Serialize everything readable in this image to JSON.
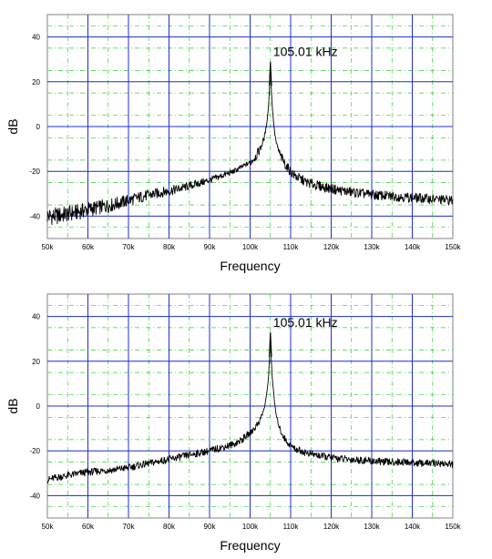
{
  "chart_data": [
    {
      "type": "line",
      "xlabel": "Frequency",
      "ylabel": "dB",
      "xlim": [
        50,
        150
      ],
      "ylim": [
        -50,
        50
      ],
      "x_ticks": [
        "50k",
        "60k",
        "70k",
        "80k",
        "90k",
        "100k",
        "110k",
        "120k",
        "130k",
        "140k",
        "150k"
      ],
      "y_ticks": [
        "40",
        "20",
        "0",
        "-20",
        "-40"
      ],
      "annotation": "105.01 kHz",
      "peak_x": 105.01,
      "grid": true,
      "series": [
        {
          "x": [
            50,
            52,
            55,
            58,
            60,
            63,
            66,
            70,
            74,
            78,
            82,
            86,
            90,
            93,
            96,
            98,
            100,
            101.5,
            102.5,
            103.5,
            104,
            104.5,
            104.8,
            105.01,
            105.2,
            105.5,
            106,
            106.5,
            107.5,
            109,
            111,
            114,
            118,
            122,
            126,
            130,
            134,
            138,
            142,
            146,
            150
          ],
          "y": [
            -40,
            -40,
            -39,
            -38,
            -37,
            -36,
            -35,
            -33,
            -31,
            -29.5,
            -28,
            -26,
            -24,
            -22,
            -20,
            -18,
            -16,
            -13,
            -10,
            -5,
            0,
            8,
            18,
            29,
            18,
            8,
            -2,
            -8,
            -13,
            -18,
            -22,
            -25,
            -27,
            -28.5,
            -29.5,
            -30.5,
            -31,
            -31.5,
            -32,
            -32.5,
            -33
          ]
        }
      ]
    },
    {
      "type": "line",
      "xlabel": "Frequency",
      "ylabel": "dB",
      "xlim": [
        50,
        150
      ],
      "ylim": [
        -50,
        50
      ],
      "x_ticks": [
        "50k",
        "60k",
        "70k",
        "80k",
        "90k",
        "100k",
        "110k",
        "120k",
        "130k",
        "140k",
        "150k"
      ],
      "y_ticks": [
        "40",
        "20",
        "0",
        "-20",
        "-40"
      ],
      "annotation": "105.01 kHz",
      "peak_x": 105.01,
      "grid": true,
      "series": [
        {
          "x": [
            50,
            52,
            55,
            58,
            60,
            63,
            66,
            70,
            74,
            78,
            82,
            86,
            90,
            93,
            96,
            98,
            100,
            101.5,
            102.5,
            103.5,
            104,
            104.5,
            104.8,
            105.01,
            105.2,
            105.5,
            106,
            106.5,
            107.5,
            109,
            111,
            114,
            118,
            122,
            126,
            130,
            134,
            138,
            142,
            146,
            150
          ],
          "y": [
            -33,
            -32,
            -31,
            -30,
            -29.5,
            -29,
            -28.5,
            -27.5,
            -26,
            -24.5,
            -23,
            -21.5,
            -20,
            -18.5,
            -17,
            -15,
            -12,
            -9,
            -6,
            -1,
            4,
            12,
            22,
            33,
            22,
            12,
            2,
            -5,
            -11,
            -16,
            -19,
            -21,
            -22.5,
            -23.5,
            -24,
            -24.5,
            -25,
            -25,
            -25.5,
            -25.5,
            -26
          ]
        }
      ]
    }
  ]
}
